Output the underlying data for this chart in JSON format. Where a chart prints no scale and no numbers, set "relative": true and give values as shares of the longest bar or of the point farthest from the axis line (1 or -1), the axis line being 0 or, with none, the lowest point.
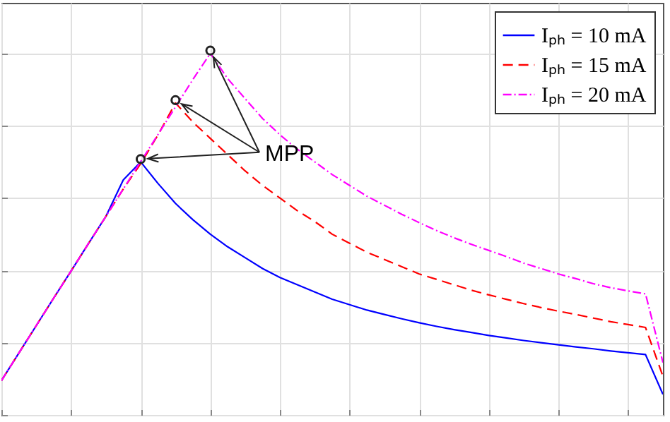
{
  "chart_data": {
    "type": "line",
    "relative": true,
    "grid": true,
    "legend": "top right",
    "annotations": [
      "MPP"
    ],
    "categories": [
      null,
      null,
      null,
      null,
      null,
      null,
      null,
      null,
      null,
      null,
      null,
      null,
      null,
      null,
      null,
      null,
      null,
      null,
      null,
      null,
      null,
      null,
      null,
      null,
      null,
      null,
      null,
      null,
      null,
      null,
      null,
      null,
      null,
      null,
      null,
      null,
      null,
      null,
      null
    ],
    "series": [
      {
        "name": "Iₚₕ = 10 mA",
        "color": "#0000ff",
        "line_style": "solid",
        "values": [
          0.095,
          0.171,
          0.247,
          0.323,
          0.398,
          0.474,
          0.549,
          0.65,
          0.7,
          0.64,
          0.585,
          0.54,
          0.5,
          0.465,
          0.435,
          0.405,
          0.38,
          0.36,
          0.34,
          0.32,
          0.305,
          0.29,
          0.278,
          0.266,
          0.255,
          0.245,
          0.236,
          0.228,
          0.22,
          0.213,
          0.206,
          0.2,
          0.194,
          0.188,
          0.183,
          0.177,
          0.172,
          0.167,
          0.057
        ]
      },
      {
        "name": "Iₚₕ = 15 mA",
        "color": "#ff0000",
        "line_style": "dashed",
        "values": [
          0.095,
          0.171,
          0.247,
          0.323,
          0.398,
          0.474,
          0.549,
          0.625,
          0.695,
          0.775,
          0.863,
          0.81,
          0.765,
          0.72,
          0.675,
          0.635,
          0.6,
          0.565,
          0.535,
          0.5,
          0.475,
          0.45,
          0.43,
          0.41,
          0.39,
          0.375,
          0.36,
          0.345,
          0.332,
          0.32,
          0.308,
          0.297,
          0.287,
          0.278,
          0.268,
          0.258,
          0.25,
          0.242,
          0.107
        ]
      },
      {
        "name": "Iₚₕ = 20 mA",
        "color": "#ff00ff",
        "line_style": "dotted",
        "values": [
          0.095,
          0.171,
          0.247,
          0.323,
          0.398,
          0.474,
          0.549,
          0.625,
          0.701,
          0.776,
          0.852,
          0.928,
          1.0,
          0.93,
          0.875,
          0.82,
          0.775,
          0.735,
          0.7,
          0.665,
          0.635,
          0.605,
          0.58,
          0.555,
          0.532,
          0.51,
          0.49,
          0.472,
          0.455,
          0.438,
          0.42,
          0.405,
          0.39,
          0.377,
          0.363,
          0.352,
          0.343,
          0.335,
          0.145
        ]
      }
    ]
  }
}
